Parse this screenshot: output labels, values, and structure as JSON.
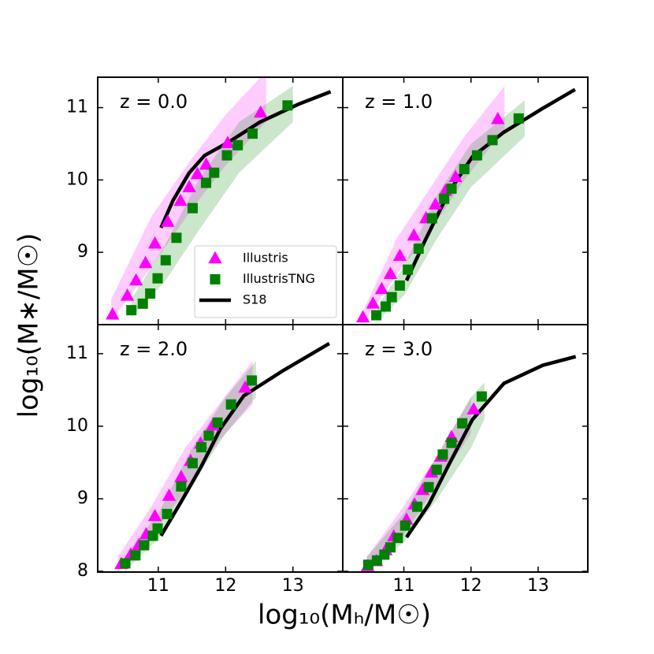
{
  "xlabel": "log₁₀(Mₕ/M☉)",
  "ylabel": "log₁₀(M∗/M☉)",
  "chart_data": [
    {
      "type": "scatter",
      "annotation": "z = 0.0",
      "xlim": [
        10.1,
        13.74
      ],
      "ylim": [
        8.0,
        11.42
      ],
      "xticks": [
        11,
        12,
        13
      ],
      "yticks": [
        9,
        10,
        11
      ],
      "legend": "lower right",
      "series": [
        {
          "name": "Illustris",
          "color": "#ff00ff",
          "marker": "triangle",
          "x": [
            10.32,
            10.54,
            10.67,
            10.81,
            10.95,
            11.14,
            11.33,
            11.46,
            11.58,
            11.71,
            12.03,
            12.52
          ],
          "values": [
            8.14,
            8.4,
            8.61,
            8.85,
            9.12,
            9.42,
            9.71,
            9.9,
            10.08,
            10.21,
            10.51,
            10.93
          ],
          "band": {
            "x": [
              10.3,
              10.9,
              11.5,
              12.0,
              12.6
            ],
            "lower": [
              8.05,
              8.8,
              9.6,
              10.2,
              10.8
            ],
            "upper": [
              8.35,
              9.5,
              10.3,
              10.9,
              11.5
            ]
          }
        },
        {
          "name": "IllustrisTNG",
          "color": "#008000",
          "marker": "square",
          "x": [
            10.6,
            10.77,
            10.88,
            10.99,
            11.11,
            11.27,
            11.51,
            11.71,
            11.83,
            12.02,
            12.18,
            12.4,
            12.92
          ],
          "values": [
            8.2,
            8.29,
            8.43,
            8.64,
            8.89,
            9.2,
            9.61,
            9.96,
            10.1,
            10.34,
            10.48,
            10.64,
            11.03
          ],
          "band": {
            "x": [
              10.6,
              11.1,
              11.6,
              12.2,
              13.0
            ],
            "lower": [
              8.1,
              8.6,
              9.3,
              10.1,
              10.8
            ],
            "upper": [
              8.35,
              9.1,
              10.0,
              10.8,
              11.3
            ]
          }
        },
        {
          "name": "S18",
          "color": "#000000",
          "marker": "line",
          "x": [
            11.04,
            11.22,
            11.46,
            11.69,
            12.04,
            12.51,
            13.09,
            13.56
          ],
          "values": [
            9.34,
            9.72,
            10.1,
            10.34,
            10.52,
            10.8,
            11.05,
            11.22
          ]
        }
      ]
    },
    {
      "type": "scatter",
      "annotation": "z = 1.0",
      "xlim": [
        10.09,
        13.74
      ],
      "ylim": [
        8.0,
        11.42
      ],
      "xticks": [
        11,
        12,
        13
      ],
      "yticks": [
        9,
        10,
        11
      ],
      "series": [
        {
          "name": "Illustris",
          "color": "#ff00ff",
          "marker": "triangle",
          "x": [
            10.39,
            10.54,
            10.67,
            10.8,
            10.94,
            11.15,
            11.33,
            11.47,
            11.62,
            11.77,
            12.4
          ],
          "values": [
            8.1,
            8.29,
            8.49,
            8.7,
            8.95,
            9.23,
            9.47,
            9.66,
            9.85,
            10.04,
            10.84
          ],
          "band": {
            "x": [
              10.4,
              10.9,
              11.4,
              11.9,
              12.5
            ],
            "lower": [
              8.02,
              8.7,
              9.3,
              10.0,
              10.7
            ],
            "upper": [
              8.2,
              9.2,
              9.9,
              10.6,
              11.3
            ]
          }
        },
        {
          "name": "IllustrisTNG",
          "color": "#008000",
          "marker": "square",
          "x": [
            10.59,
            10.73,
            10.82,
            10.94,
            11.06,
            11.22,
            11.42,
            11.6,
            11.71,
            11.9,
            12.09,
            12.32,
            12.71
          ],
          "values": [
            8.13,
            8.25,
            8.38,
            8.54,
            8.76,
            9.05,
            9.47,
            9.74,
            9.88,
            10.15,
            10.34,
            10.55,
            10.85
          ],
          "band": {
            "x": [
              10.6,
              11.0,
              11.5,
              12.0,
              12.8
            ],
            "lower": [
              8.05,
              8.4,
              9.2,
              9.9,
              10.6
            ],
            "upper": [
              8.25,
              8.8,
              9.8,
              10.5,
              11.1
            ]
          }
        },
        {
          "name": "S18",
          "color": "#000000",
          "marker": "line",
          "x": [
            11.04,
            11.32,
            11.67,
            12.02,
            12.49,
            13.07,
            13.55
          ],
          "values": [
            8.61,
            9.17,
            9.83,
            10.32,
            10.66,
            10.99,
            11.25
          ]
        }
      ]
    },
    {
      "type": "scatter",
      "annotation": "z = 2.0",
      "xlim": [
        10.1,
        13.74
      ],
      "ylim": [
        7.99,
        11.4
      ],
      "xticks": [
        11,
        12,
        13
      ],
      "yticks": [
        8,
        9,
        10,
        11
      ],
      "series": [
        {
          "name": "Illustris",
          "color": "#ff00ff",
          "marker": "triangle",
          "x": [
            10.45,
            10.59,
            10.71,
            10.82,
            10.95,
            11.16,
            11.34,
            11.48,
            11.63,
            11.81,
            12.29
          ],
          "values": [
            8.1,
            8.23,
            8.36,
            8.51,
            8.76,
            9.04,
            9.3,
            9.52,
            9.76,
            10.01,
            10.53
          ],
          "band": {
            "x": [
              10.4,
              10.9,
              11.4,
              11.9,
              12.4
            ],
            "lower": [
              8.0,
              8.5,
              9.1,
              9.8,
              10.3
            ],
            "upper": [
              8.2,
              8.9,
              9.7,
              10.3,
              10.9
            ]
          }
        },
        {
          "name": "IllustrisTNG",
          "color": "#008000",
          "marker": "square",
          "x": [
            10.51,
            10.66,
            10.79,
            10.92,
            10.99,
            11.13,
            11.34,
            11.51,
            11.64,
            11.75,
            11.88,
            12.08,
            12.39
          ],
          "values": [
            8.11,
            8.22,
            8.36,
            8.49,
            8.59,
            8.79,
            9.17,
            9.49,
            9.71,
            9.87,
            10.05,
            10.3,
            10.63
          ],
          "band": {
            "x": [
              10.5,
              11.0,
              11.5,
              12.0,
              12.45
            ],
            "lower": [
              8.0,
              8.45,
              9.2,
              9.9,
              10.4
            ],
            "upper": [
              8.2,
              8.8,
              9.7,
              10.4,
              10.9
            ]
          }
        },
        {
          "name": "S18",
          "color": "#000000",
          "marker": "line",
          "x": [
            11.04,
            11.34,
            11.63,
            11.92,
            12.27,
            12.86,
            13.54
          ],
          "values": [
            8.49,
            8.96,
            9.43,
            9.96,
            10.42,
            10.77,
            11.14
          ]
        }
      ]
    },
    {
      "type": "scatter",
      "annotation": "z = 3.0",
      "xlim": [
        10.09,
        13.74
      ],
      "ylim": [
        7.99,
        11.4
      ],
      "xticks": [
        11,
        12,
        13
      ],
      "yticks": [
        8,
        9,
        10,
        11
      ],
      "series": [
        {
          "name": "Illustris",
          "color": "#ff00ff",
          "marker": "triangle",
          "x": [
            10.46,
            10.59,
            10.73,
            10.85,
            11.04,
            11.16,
            11.28,
            11.41,
            11.55,
            11.71,
            12.04
          ],
          "values": [
            8.07,
            8.14,
            8.29,
            8.48,
            8.71,
            8.92,
            9.12,
            9.36,
            9.58,
            9.85,
            10.23
          ],
          "band": {
            "x": [
              10.45,
              11.0,
              11.5,
              12.0
            ],
            "lower": [
              8.0,
              8.5,
              9.2,
              9.9
            ],
            "upper": [
              8.2,
              8.9,
              9.6,
              10.4
            ]
          }
        },
        {
          "name": "IllustrisTNG",
          "color": "#008000",
          "marker": "square",
          "x": [
            10.47,
            10.6,
            10.71,
            10.8,
            10.91,
            11.02,
            11.2,
            11.37,
            11.49,
            11.58,
            11.71,
            11.87,
            12.16
          ],
          "values": [
            8.09,
            8.15,
            8.23,
            8.33,
            8.46,
            8.63,
            8.89,
            9.16,
            9.4,
            9.61,
            9.77,
            10.04,
            10.41
          ],
          "band": {
            "x": [
              10.45,
              11.0,
              11.5,
              12.0,
              12.2
            ],
            "lower": [
              8.0,
              8.4,
              9.0,
              9.7,
              10.1
            ],
            "upper": [
              8.2,
              8.8,
              9.6,
              10.4,
              10.6
            ]
          }
        },
        {
          "name": "S18",
          "color": "#000000",
          "marker": "line",
          "x": [
            11.04,
            11.37,
            11.67,
            12.02,
            12.49,
            13.07,
            13.56
          ],
          "values": [
            8.47,
            8.92,
            9.47,
            10.09,
            10.59,
            10.84,
            10.96
          ]
        }
      ]
    }
  ]
}
